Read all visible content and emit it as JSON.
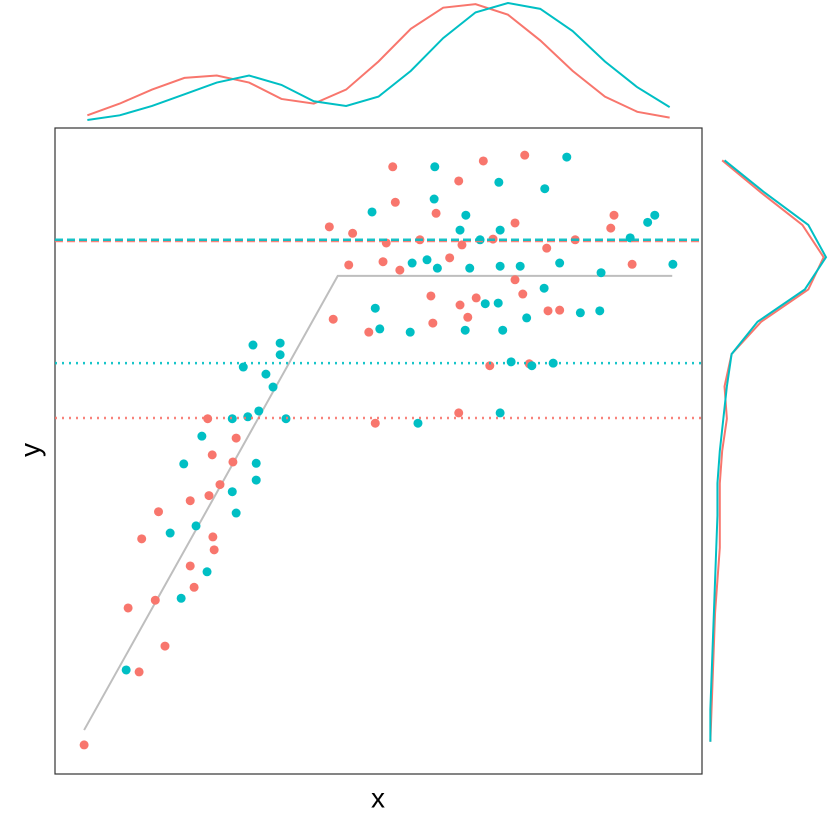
{
  "chart_data": {
    "type": "scatter",
    "x_label": "x",
    "y_label": "y",
    "xlim": [
      0,
      100
    ],
    "ylim": [
      0,
      100
    ],
    "series": [
      {
        "color": "#F8766D",
        "x": [
          4.5,
          13,
          17,
          11.3,
          15.5,
          13.4,
          16,
          20.9,
          21.5,
          24.6,
          24.4,
          20.9,
          23.8,
          25.5,
          27.5,
          24.3,
          23.6,
          28,
          49.5,
          62.4,
          67.2,
          73.3,
          43,
          48.5,
          45.4,
          42.4,
          46,
          52.2,
          52.6,
          58.9,
          62.4,
          66.2,
          72.6,
          86.4,
          85.9,
          89.2,
          71.1,
          67.7,
          62.9,
          56.4,
          51.2,
          53.3,
          50.7,
          58.1,
          62.6,
          63.8,
          58.4,
          76.2,
          78,
          72.3,
          76,
          71.1,
          80.4,
          65.1,
          61
        ],
        "values": [
          4.5,
          15.8,
          19.8,
          25.7,
          26.9,
          36.4,
          40.6,
          32.2,
          28.9,
          34.7,
          36.7,
          42.3,
          43.1,
          44.8,
          48.3,
          49.4,
          55,
          52,
          54.3,
          55.9,
          63.2,
          63.5,
          70.4,
          68.4,
          78.8,
          84.7,
          83.7,
          94,
          88.5,
          86.8,
          91.8,
          94.9,
          95.8,
          86.5,
          84.5,
          78.9,
          85.3,
          82.8,
          81.9,
          82.7,
          82.2,
          78,
          79.3,
          74,
          72.6,
          70.7,
          69.8,
          71.7,
          71.8,
          74.3,
          81.4,
          76.5,
          82.7,
          73.7,
          79.9
        ]
      },
      {
        "color": "#00BFC4",
        "x": [
          11,
          19.5,
          23.5,
          17.8,
          21.8,
          28,
          27.4,
          31.1,
          31.1,
          19.9,
          22.7,
          27.4,
          29.8,
          31.5,
          35.7,
          33.7,
          32.6,
          29.1,
          30.6,
          34.8,
          34.8,
          56.1,
          68.8,
          70.5,
          73.7,
          77,
          49.5,
          50.2,
          54.9,
          63.4,
          49,
          58.7,
          58.6,
          63.5,
          68.6,
          75.7,
          79.1,
          92.7,
          91.6,
          88.9,
          95.5,
          84.4,
          81.2,
          84.2,
          69.2,
          66.5,
          59.1,
          57.5,
          55.2,
          68.8,
          71.9,
          78,
          75.6,
          68.5,
          72.9,
          64.1,
          65.7,
          68.8,
          62.6
        ],
        "values": [
          16.1,
          27.2,
          31.3,
          37.3,
          38.4,
          40.4,
          43.7,
          45.5,
          48.1,
          48,
          52.3,
          55,
          55.3,
          56.2,
          55,
          59.9,
          61.9,
          63,
          66.4,
          66.7,
          64.9,
          54.3,
          55.9,
          63.8,
          63.2,
          63.6,
          72.1,
          68.9,
          68.4,
          68.7,
          87,
          94,
          89,
          86.5,
          91.6,
          90.6,
          95.5,
          86.5,
          85.4,
          83,
          78.9,
          77.6,
          71.4,
          71.7,
          68.7,
          72.8,
          78.3,
          79.6,
          79.1,
          78.6,
          78.6,
          79.1,
          75.2,
          72.9,
          70.6,
          78.3,
          82.7,
          84.2,
          84.2
        ]
      }
    ],
    "reference_lines": [
      {
        "y": 82.5,
        "color": "#F8766D",
        "style": "dashed"
      },
      {
        "y": 82.7,
        "color": "#00BFC4",
        "style": "dashed"
      },
      {
        "y": 63.6,
        "color": "#00BFC4",
        "style": "dotted"
      },
      {
        "y": 55.1,
        "color": "#F8766D",
        "style": "dotted"
      }
    ],
    "trend": {
      "x": [
        4.5,
        43.7,
        95.4
      ],
      "values": [
        6.8,
        77.1,
        77.1
      ],
      "color": "#BEBEBE"
    },
    "top_density": {
      "x": [
        5,
        10,
        15,
        20,
        25,
        30,
        35,
        40,
        45,
        50,
        55,
        60,
        65,
        70,
        75,
        80,
        85,
        90,
        95
      ],
      "series": [
        {
          "color": "#F8766D",
          "values": [
            0.04,
            0.14,
            0.26,
            0.36,
            0.38,
            0.32,
            0.18,
            0.14,
            0.26,
            0.5,
            0.78,
            0.96,
            0.99,
            0.9,
            0.68,
            0.42,
            0.2,
            0.07,
            0.02
          ]
        },
        {
          "color": "#00BFC4",
          "values": [
            0,
            0.04,
            0.12,
            0.22,
            0.32,
            0.38,
            0.3,
            0.16,
            0.12,
            0.2,
            0.42,
            0.7,
            0.92,
            1,
            0.95,
            0.76,
            0.5,
            0.28,
            0.11
          ]
        }
      ]
    },
    "right_density": {
      "y": [
        5,
        10,
        15,
        20,
        25,
        30,
        35,
        40,
        45,
        50,
        55,
        60,
        65,
        70,
        75,
        80,
        85,
        90,
        95
      ],
      "series": [
        {
          "color": "#F8766D",
          "values": [
            0.02,
            0.03,
            0.04,
            0.05,
            0.06,
            0.08,
            0.1,
            0.1,
            0.1,
            0.12,
            0.16,
            0.14,
            0.2,
            0.45,
            0.85,
            0.98,
            0.8,
            0.45,
            0.12
          ]
        },
        {
          "color": "#00BFC4",
          "values": [
            0.02,
            0.02,
            0.03,
            0.04,
            0.05,
            0.06,
            0.07,
            0.08,
            0.08,
            0.1,
            0.13,
            0.16,
            0.2,
            0.42,
            0.82,
            1,
            0.85,
            0.48,
            0.14
          ]
        }
      ]
    }
  }
}
